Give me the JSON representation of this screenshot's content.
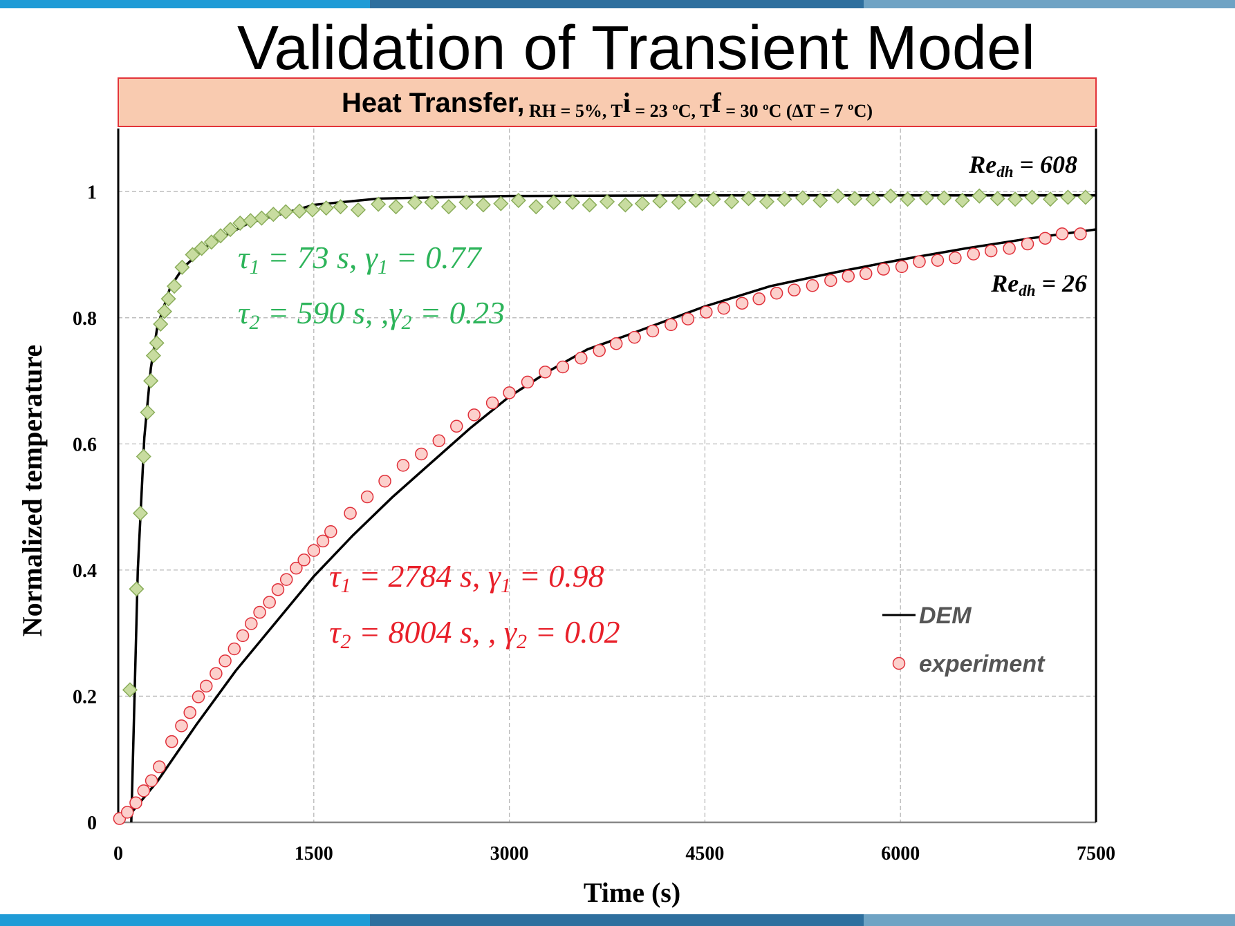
{
  "chart_data": {
    "type": "line",
    "title": "Validation of Transient Model",
    "subtitle": [
      "Heat Transfer,",
      " RH = 5%, T",
      "i",
      " = 23 ºC, T",
      "f",
      " = 30 ºC (ΔT = 7 ºC)"
    ],
    "x_label": "Time (s)",
    "y_label": "Normalized temperature",
    "xlim": [
      0,
      7500
    ],
    "xticks": [
      0,
      1500,
      3000,
      4500,
      6000,
      7500
    ],
    "ylim": [
      0,
      1.1
    ],
    "yticks": [
      0,
      0.2,
      0.4,
      0.6,
      0.8,
      1
    ],
    "grid": true,
    "legend": "lower right",
    "annotations": [
      {
        "parts": [
          "Re",
          "dh",
          " = 608"
        ],
        "color": "#000000"
      },
      {
        "parts": [
          "Re",
          "dh",
          " = 26"
        ],
        "color": "#000000"
      },
      {
        "parts": [
          "τ",
          "1",
          " = 73 s, γ",
          "1",
          " = 0.77"
        ],
        "color": "#2db45a"
      },
      {
        "parts": [
          "τ",
          "2",
          " = 590 s, ,γ",
          "2",
          " = 0.23"
        ],
        "color": "#2db45a"
      },
      {
        "parts": [
          "τ",
          "1",
          " = 2784 s, γ",
          "1",
          " = 0.98"
        ],
        "color": "#e8202a"
      },
      {
        "parts": [
          "τ",
          "2",
          " = 8004 s, , γ",
          "2",
          " = 0.02"
        ],
        "color": "#e8202a"
      }
    ],
    "series": [
      {
        "type": "line",
        "color": "#000000",
        "x": [
          100,
          150,
          200,
          250,
          300,
          400,
          500,
          700,
          1000,
          1500,
          2000,
          3000,
          4500,
          6000,
          7500
        ],
        "values": [
          0,
          0.4,
          0.61,
          0.72,
          0.786,
          0.849,
          0.88,
          0.917,
          0.95,
          0.979,
          0.989,
          0.993,
          0.994,
          0.994,
          0.994
        ]
      },
      {
        "type": "scatter",
        "marker": "diamond",
        "color": "#c8dca0",
        "edge": "#8aad5a",
        "x": [
          90,
          140,
          170,
          195,
          225,
          250,
          270,
          295,
          325,
          355,
          385,
          430,
          490,
          570,
          640,
          715,
          785,
          860,
          935,
          1015,
          1100,
          1190,
          1285,
          1390,
          1490,
          1595,
          1705,
          1840,
          1995,
          2130,
          2275,
          2405,
          2535,
          2670,
          2800,
          2935,
          3070,
          3205,
          3340,
          3485,
          3615,
          3750,
          3890,
          4020,
          4155,
          4300,
          4430,
          4565,
          4705,
          4835,
          4975,
          5110,
          5250,
          5385,
          5520,
          5650,
          5790,
          5925,
          6055,
          6200,
          6335,
          6475,
          6605,
          6745,
          6880,
          7010,
          7150,
          7285,
          7420
        ],
        "values": [
          0.21,
          0.37,
          0.49,
          0.58,
          0.65,
          0.7,
          0.74,
          0.76,
          0.79,
          0.81,
          0.83,
          0.85,
          0.88,
          0.9,
          0.91,
          0.92,
          0.93,
          0.94,
          0.95,
          0.954,
          0.958,
          0.964,
          0.968,
          0.969,
          0.971,
          0.974,
          0.976,
          0.971,
          0.98,
          0.976,
          0.983,
          0.983,
          0.976,
          0.983,
          0.979,
          0.981,
          0.986,
          0.976,
          0.983,
          0.983,
          0.979,
          0.984,
          0.979,
          0.981,
          0.985,
          0.983,
          0.986,
          0.988,
          0.984,
          0.989,
          0.984,
          0.988,
          0.99,
          0.986,
          0.993,
          0.989,
          0.988,
          0.993,
          0.988,
          0.99,
          0.99,
          0.986,
          0.993,
          0.989,
          0.988,
          0.991,
          0.988,
          0.991,
          0.991
        ]
      },
      {
        "type": "line",
        "name": "DEM",
        "color": "#000000",
        "x": [
          0,
          100,
          300,
          600,
          900,
          1200,
          1500,
          1800,
          2100,
          2400,
          2700,
          3000,
          3300,
          3600,
          3900,
          4200,
          4500,
          5000,
          5500,
          6000,
          6500,
          7000,
          7500
        ],
        "values": [
          0,
          0.015,
          0.065,
          0.155,
          0.24,
          0.315,
          0.39,
          0.455,
          0.515,
          0.57,
          0.625,
          0.675,
          0.715,
          0.75,
          0.772,
          0.795,
          0.818,
          0.85,
          0.872,
          0.892,
          0.91,
          0.926,
          0.94
        ]
      },
      {
        "type": "scatter",
        "marker": "circle",
        "name": "experiment",
        "color": "#fcd0cc",
        "edge": "#e0303a",
        "x": [
          10,
          70,
          135,
          195,
          255,
          315,
          410,
          485,
          550,
          615,
          675,
          750,
          820,
          890,
          955,
          1020,
          1085,
          1160,
          1225,
          1290,
          1365,
          1425,
          1500,
          1570,
          1630,
          1780,
          1910,
          2045,
          2185,
          2325,
          2460,
          2595,
          2730,
          2870,
          3000,
          3140,
          3275,
          3410,
          3550,
          3690,
          3820,
          3960,
          4100,
          4240,
          4370,
          4510,
          4645,
          4785,
          4915,
          5050,
          5185,
          5325,
          5465,
          5600,
          5735,
          5870,
          6010,
          6145,
          6285,
          6420,
          6560,
          6695,
          6835,
          6975,
          7110,
          7240,
          7380
        ],
        "values": [
          0.006,
          0.016,
          0.031,
          0.05,
          0.066,
          0.088,
          0.128,
          0.153,
          0.174,
          0.199,
          0.216,
          0.236,
          0.256,
          0.275,
          0.296,
          0.315,
          0.333,
          0.349,
          0.369,
          0.385,
          0.403,
          0.416,
          0.431,
          0.446,
          0.461,
          0.49,
          0.516,
          0.541,
          0.566,
          0.584,
          0.605,
          0.628,
          0.646,
          0.665,
          0.681,
          0.698,
          0.714,
          0.722,
          0.736,
          0.748,
          0.759,
          0.769,
          0.779,
          0.789,
          0.798,
          0.809,
          0.815,
          0.823,
          0.83,
          0.839,
          0.844,
          0.851,
          0.859,
          0.866,
          0.87,
          0.877,
          0.881,
          0.889,
          0.891,
          0.895,
          0.901,
          0.906,
          0.91,
          0.917,
          0.926,
          0.933,
          0.933
        ]
      }
    ]
  }
}
